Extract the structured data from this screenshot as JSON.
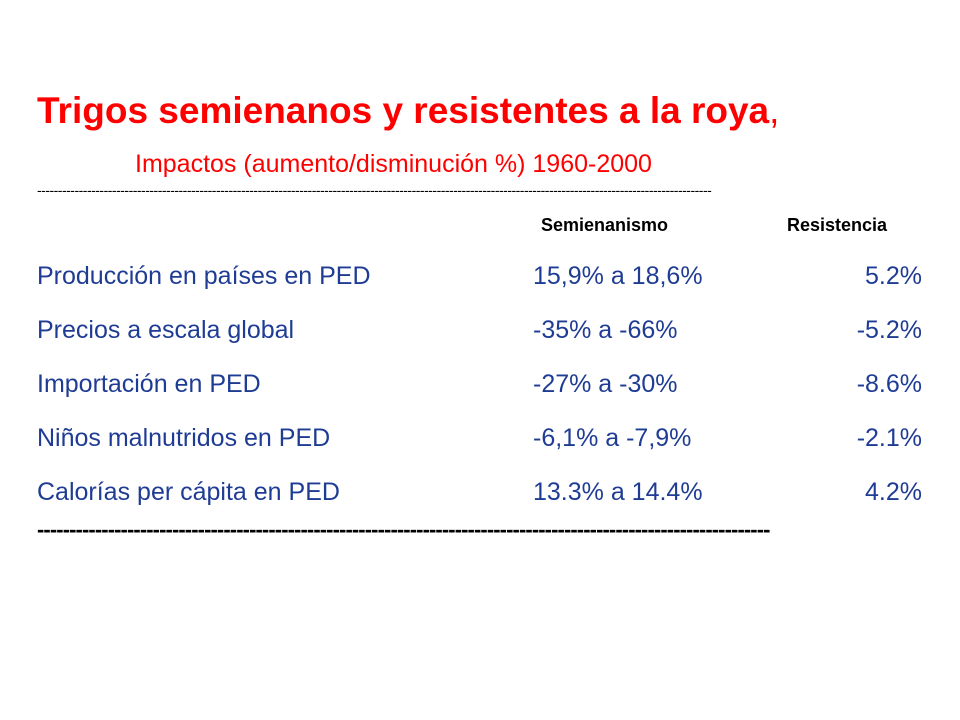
{
  "header": {
    "title": "Trigos semienanos y resistentes a la roya",
    "title_comma": ",",
    "subtitle": "Impactos (aumento/disminución %) 1960-2000"
  },
  "table": {
    "columns": [
      "Semienanismo",
      "Resistencia"
    ],
    "rows": [
      {
        "label": "Producción en países en PED",
        "semienanismo": "15,9% a 18,6%",
        "resistencia": "5.2%"
      },
      {
        "label": "Precios a escala global",
        "semienanismo": "-35% a -66%",
        "resistencia": "-5.2%"
      },
      {
        "label": "Importación en PED",
        "semienanismo": "-27% a -30%",
        "resistencia": "-8.6%"
      },
      {
        "label": "Niños malnutridos en PED",
        "semienanismo": "-6,1% a -7,9%",
        "resistencia": "-2.1%"
      },
      {
        "label": "Calorías per cápita en PED",
        "semienanismo": "13.3% a 14.4%",
        "resistencia": "4.2%"
      }
    ]
  },
  "colors": {
    "title": "#ff0000",
    "body_text": "#1f3c94",
    "rules": "#000000"
  }
}
